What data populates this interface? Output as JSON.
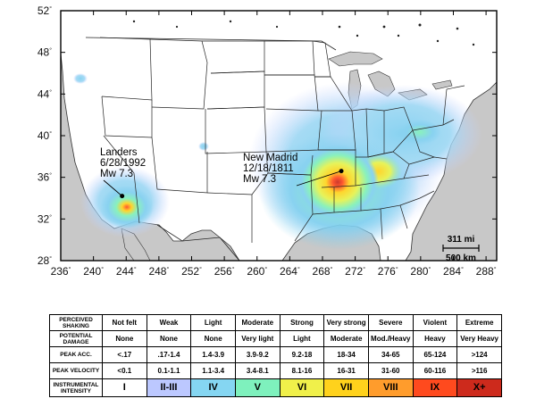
{
  "map": {
    "lat_ticks": [
      {
        "deg": 52,
        "label": "52"
      },
      {
        "deg": 48,
        "label": "48"
      },
      {
        "deg": 44,
        "label": "44"
      },
      {
        "deg": 40,
        "label": "40"
      },
      {
        "deg": 36,
        "label": "36"
      },
      {
        "deg": 32,
        "label": "32"
      },
      {
        "deg": 28,
        "label": "28"
      }
    ],
    "lon_ticks": [
      {
        "deg": 236,
        "label": "236"
      },
      {
        "deg": 240,
        "label": "240"
      },
      {
        "deg": 244,
        "label": "244"
      },
      {
        "deg": 248,
        "label": "248"
      },
      {
        "deg": 252,
        "label": "252"
      },
      {
        "deg": 256,
        "label": "256"
      },
      {
        "deg": 260,
        "label": "260"
      },
      {
        "deg": 264,
        "label": "264"
      },
      {
        "deg": 268,
        "label": "268"
      },
      {
        "deg": 272,
        "label": "272"
      },
      {
        "deg": 276,
        "label": "276"
      },
      {
        "deg": 280,
        "label": "280"
      },
      {
        "deg": 284,
        "label": "284"
      },
      {
        "deg": 288,
        "label": "288"
      }
    ],
    "degree_symbol": "°",
    "events": [
      {
        "name": "Landers",
        "date": "6/28/1992",
        "magnitude": "Mw 7.3",
        "epicenter_lon": 243.5,
        "epicenter_lat": 34.2
      },
      {
        "name": "New Madrid",
        "date": "12/18/1811",
        "magnitude": "Mw 7.3",
        "epicenter_lon": 270.3,
        "epicenter_lat": 36.6
      }
    ],
    "scale_bar": {
      "miles": "311 mi",
      "km": "500 km"
    },
    "colors": {
      "ocean": "#c8c8c8",
      "land": "#ffffff",
      "I": "#ffffff",
      "II-III": "#c8d2ff",
      "IV": "#7fcfef",
      "V": "#80f0b8",
      "VI": "#e6f24c",
      "VII": "#ffd11f",
      "VIII": "#ff9a2a",
      "IX": "#ff3e1e",
      "X+": "#c8281c"
    }
  },
  "legend": {
    "row_headers": [
      "PERCEIVED SHAKING",
      "POTENTIAL DAMAGE",
      "PEAK ACC.",
      "PEAK VELOCITY",
      "INSTRUMENTAL INTENSITY"
    ],
    "columns": [
      {
        "shaking": "Not felt",
        "damage": "None",
        "acc": "<.17",
        "vel": "<0.1",
        "intensity": "I",
        "color": "#ffffff"
      },
      {
        "shaking": "Weak",
        "damage": "None",
        "acc": ".17-1.4",
        "vel": "0.1-1.1",
        "intensity": "II-III",
        "color": "#bcc8ff"
      },
      {
        "shaking": "Light",
        "damage": "None",
        "acc": "1.4-3.9",
        "vel": "1.1-3.4",
        "intensity": "IV",
        "color": "#85d6f2"
      },
      {
        "shaking": "Moderate",
        "damage": "Very light",
        "acc": "3.9-9.2",
        "vel": "3.4-8.1",
        "intensity": "V",
        "color": "#7ef1bd"
      },
      {
        "shaking": "Strong",
        "damage": "Light",
        "acc": "9.2-18",
        "vel": "8.1-16",
        "intensity": "VI",
        "color": "#f0f04a"
      },
      {
        "shaking": "Very strong",
        "damage": "Moderate",
        "acc": "18-34",
        "vel": "16-31",
        "intensity": "VII",
        "color": "#ffd21c"
      },
      {
        "shaking": "Severe",
        "damage": "Mod./Heavy",
        "acc": "34-65",
        "vel": "31-60",
        "intensity": "VIII",
        "color": "#ff9c2c"
      },
      {
        "shaking": "Violent",
        "damage": "Heavy",
        "acc": "65-124",
        "vel": "60-116",
        "intensity": "IX",
        "color": "#ff4a1e"
      },
      {
        "shaking": "Extreme",
        "damage": "Very Heavy",
        "acc": ">124",
        "vel": ">116",
        "intensity": "X+",
        "color": "#cd2a1c"
      }
    ]
  }
}
